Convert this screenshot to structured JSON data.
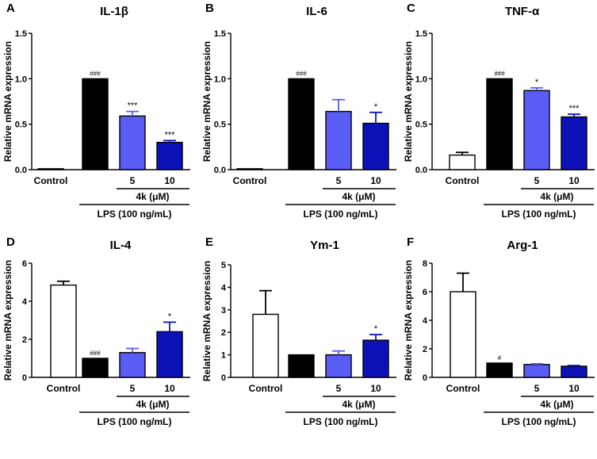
{
  "figure": {
    "colors": {
      "control": "#ffffff",
      "lps": "#000000",
      "dose5": "#5a5df5",
      "dose10": "#0d12b8",
      "outline": "#000000"
    },
    "shared": {
      "control_label": "Control",
      "dose_label": "4k (μM)",
      "lps_label": "LPS (100 ng/mL)",
      "ylabel": "Relative mRNA expression"
    }
  },
  "chart_data": [
    {
      "letter": "A",
      "title": "IL-1β",
      "type": "bar",
      "ylabel": "Relative mRNA expression",
      "ylim": [
        0,
        1.5
      ],
      "yticks": [
        0.0,
        0.5,
        1.0,
        1.5
      ],
      "tick_labels": [
        "0.0",
        "0.5",
        "1.0",
        "1.5"
      ],
      "categories": [
        "Control",
        "LPS",
        "5",
        "10"
      ],
      "values": [
        0.01,
        1.0,
        0.59,
        0.3
      ],
      "errors": [
        0.0,
        0.0,
        0.05,
        0.02
      ],
      "sig": [
        "",
        "###",
        "***",
        "***"
      ]
    },
    {
      "letter": "B",
      "title": "IL-6",
      "type": "bar",
      "ylabel": "Relative mRNA expression",
      "ylim": [
        0,
        1.5
      ],
      "yticks": [
        0.0,
        0.5,
        1.0,
        1.5
      ],
      "tick_labels": [
        "0.0",
        "0.5",
        "1.0",
        "1.5"
      ],
      "categories": [
        "Control",
        "LPS",
        "5",
        "10"
      ],
      "values": [
        0.01,
        1.0,
        0.64,
        0.51
      ],
      "errors": [
        0.0,
        0.0,
        0.13,
        0.12
      ],
      "sig": [
        "",
        "###",
        "",
        "*"
      ]
    },
    {
      "letter": "C",
      "title": "TNF-α",
      "type": "bar",
      "ylabel": "Relative mRNA expression",
      "ylim": [
        0,
        1.5
      ],
      "yticks": [
        0.0,
        0.5,
        1.0,
        1.5
      ],
      "tick_labels": [
        "0.0",
        "0.5",
        "1.0",
        "1.5"
      ],
      "categories": [
        "Control",
        "LPS",
        "5",
        "10"
      ],
      "values": [
        0.16,
        1.0,
        0.87,
        0.58
      ],
      "errors": [
        0.03,
        0.0,
        0.03,
        0.03
      ],
      "sig": [
        "",
        "###",
        "*",
        "***"
      ]
    },
    {
      "letter": "D",
      "title": "IL-4",
      "type": "bar",
      "ylabel": "Relative mRNA expression",
      "ylim": [
        0,
        6
      ],
      "yticks": [
        0,
        2,
        4,
        6
      ],
      "tick_labels": [
        "0",
        "2",
        "4",
        "6"
      ],
      "categories": [
        "Control",
        "LPS",
        "5",
        "10"
      ],
      "values": [
        4.85,
        1.0,
        1.3,
        2.4
      ],
      "errors": [
        0.2,
        0.0,
        0.22,
        0.5
      ],
      "sig": [
        "",
        "###",
        "",
        "*"
      ]
    },
    {
      "letter": "E",
      "title": "Ym-1",
      "type": "bar",
      "ylabel": "Relative mRNA expression",
      "ylim": [
        0,
        5
      ],
      "yticks": [
        0,
        1,
        2,
        3,
        4,
        5
      ],
      "tick_labels": [
        "0",
        "1",
        "2",
        "3",
        "4",
        "5"
      ],
      "categories": [
        "Control",
        "LPS",
        "5",
        "10"
      ],
      "values": [
        2.8,
        1.0,
        1.0,
        1.65
      ],
      "errors": [
        1.05,
        0.0,
        0.17,
        0.25
      ],
      "sig": [
        "",
        "",
        "",
        "*"
      ]
    },
    {
      "letter": "F",
      "title": "Arg-1",
      "type": "bar",
      "ylabel": "Relative mRNA expression",
      "ylim": [
        0,
        8
      ],
      "yticks": [
        0,
        2,
        4,
        6,
        8
      ],
      "tick_labels": [
        "0",
        "2",
        "4",
        "6",
        "8"
      ],
      "categories": [
        "Control",
        "LPS",
        "5",
        "10"
      ],
      "values": [
        6.0,
        1.0,
        0.9,
        0.78
      ],
      "errors": [
        1.3,
        0.0,
        0.05,
        0.05
      ],
      "sig": [
        "",
        "#",
        "",
        ""
      ]
    }
  ]
}
